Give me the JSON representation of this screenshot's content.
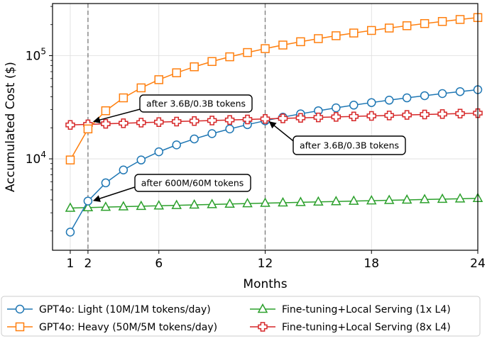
{
  "chart_data": {
    "type": "line",
    "title": "",
    "xlabel": "Months",
    "ylabel": "Accumulated Cost ($)",
    "yscale": "log",
    "xlim": [
      0,
      24
    ],
    "ylim": [
      1300,
      320000
    ],
    "x_ticks": [
      {
        "value": 1,
        "label": "1"
      },
      {
        "value": 2,
        "label": "2"
      },
      {
        "value": 6,
        "label": "6"
      },
      {
        "value": 12,
        "label": "12"
      },
      {
        "value": 18,
        "label": "18"
      },
      {
        "value": 24,
        "label": "24"
      }
    ],
    "y_ticks": [
      {
        "value": 10000,
        "base": "10",
        "exp": "4"
      },
      {
        "value": 100000,
        "base": "10",
        "exp": "5"
      }
    ],
    "vlines": [
      2,
      12
    ],
    "grid": true,
    "legend_position": "bottom",
    "series": [
      {
        "name": "GPT4o: Light (10M/1M tokens/day)",
        "color": "#1f77b4",
        "marker": "circle",
        "x": [
          1,
          2,
          3,
          4,
          5,
          6,
          7,
          8,
          9,
          10,
          11,
          12,
          13,
          14,
          15,
          16,
          17,
          18,
          19,
          20,
          21,
          22,
          23,
          24
        ],
        "values": [
          1950,
          3900,
          5850,
          7800,
          9750,
          11700,
          13650,
          15600,
          17550,
          19500,
          21450,
          23400,
          25350,
          27300,
          29250,
          31200,
          33150,
          35100,
          37050,
          39000,
          40950,
          42900,
          44850,
          46800
        ]
      },
      {
        "name": "GPT4o: Heavy (50M/5M tokens/day)",
        "color": "#ff7f0e",
        "marker": "square",
        "x": [
          1,
          2,
          3,
          4,
          5,
          6,
          7,
          8,
          9,
          10,
          11,
          12,
          13,
          14,
          15,
          16,
          17,
          18,
          19,
          20,
          21,
          22,
          23,
          24
        ],
        "values": [
          9750,
          19500,
          29250,
          39000,
          48750,
          58500,
          68250,
          78000,
          87750,
          97500,
          107250,
          117000,
          126750,
          136500,
          146250,
          156000,
          165750,
          175500,
          185250,
          195000,
          204750,
          214500,
          224250,
          234000
        ]
      },
      {
        "name": "Fine-tuning+Local Serving (1x L4)",
        "color": "#2ca02c",
        "marker": "triangle",
        "x": [
          1,
          2,
          3,
          4,
          5,
          6,
          7,
          8,
          9,
          10,
          11,
          12,
          13,
          14,
          15,
          16,
          17,
          18,
          19,
          20,
          21,
          22,
          23,
          24
        ],
        "values": [
          3335,
          3370,
          3405,
          3440,
          3475,
          3510,
          3545,
          3580,
          3615,
          3650,
          3685,
          3720,
          3755,
          3790,
          3825,
          3860,
          3895,
          3930,
          3965,
          4000,
          4035,
          4070,
          4105,
          4140
        ]
      },
      {
        "name": "Fine-tuning+Local Serving (8x L4)",
        "color": "#d62728",
        "marker": "plus",
        "x": [
          1,
          2,
          3,
          4,
          5,
          6,
          7,
          8,
          9,
          10,
          11,
          12,
          13,
          14,
          15,
          16,
          17,
          18,
          19,
          20,
          21,
          22,
          23,
          24
        ],
        "values": [
          21300,
          21580,
          21860,
          22140,
          22420,
          22700,
          22980,
          23260,
          23540,
          23820,
          24100,
          24380,
          24660,
          24940,
          25220,
          25500,
          25780,
          26060,
          26340,
          26620,
          26900,
          27180,
          27460,
          27740
        ]
      }
    ],
    "annotations": [
      {
        "text": "after 3.6B/0.3B tokens",
        "target_x": 2,
        "target_y": 21580,
        "side": "upper-right"
      },
      {
        "text": "after 3.6B/0.3B tokens",
        "target_x": 12,
        "target_y": 24000,
        "side": "lower-right"
      },
      {
        "text": "after 600M/60M tokens",
        "target_x": 2,
        "target_y": 3700,
        "side": "upper-right"
      }
    ],
    "legend_order": [
      0,
      2,
      1,
      3
    ]
  }
}
